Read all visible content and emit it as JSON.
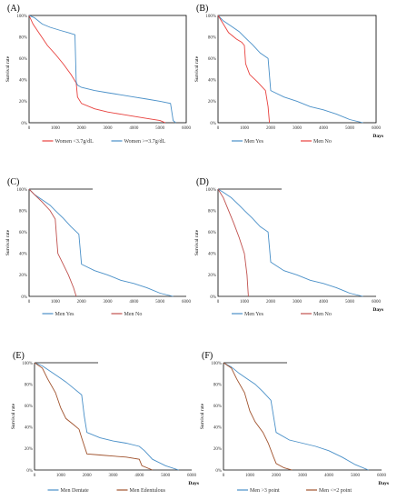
{
  "chart_data": [
    {
      "panel": "(A)",
      "type": "line",
      "title": "",
      "xlabel": "",
      "ylabel": "Survival rate",
      "xlim": [
        0,
        6000
      ],
      "ylim": [
        0,
        1
      ],
      "xticks": [
        "0",
        "1000",
        "2000",
        "3000",
        "4000",
        "5000",
        "6000"
      ],
      "yticks": [
        "0%",
        "20%",
        "40%",
        "60%",
        "80%",
        "100%"
      ],
      "frame": "full",
      "legend_position": "bottom",
      "series": [
        {
          "name": "Women <3.7g/dL",
          "color": "#e8413e",
          "x": [
            0,
            150,
            400,
            700,
            1000,
            1300,
            1600,
            1800,
            1850,
            2000,
            2500,
            3000,
            3500,
            4000,
            4500,
            5000,
            5200
          ],
          "y": [
            1.0,
            0.92,
            0.83,
            0.72,
            0.64,
            0.55,
            0.45,
            0.37,
            0.24,
            0.18,
            0.13,
            0.1,
            0.08,
            0.06,
            0.04,
            0.02,
            0.0
          ]
        },
        {
          "name": "Women >=3.7g/dL",
          "color": "#4a90c8",
          "x": [
            0,
            200,
            500,
            800,
            1200,
            1500,
            1750,
            1800,
            1850,
            2000,
            2500,
            3000,
            3500,
            4000,
            4500,
            5000,
            5400,
            5500,
            5600
          ],
          "y": [
            1.0,
            0.98,
            0.92,
            0.89,
            0.86,
            0.84,
            0.82,
            0.38,
            0.35,
            0.33,
            0.3,
            0.28,
            0.26,
            0.24,
            0.22,
            0.2,
            0.18,
            0.02,
            0.0
          ]
        }
      ]
    },
    {
      "panel": "(B)",
      "type": "line",
      "title": "",
      "xlabel": "Days",
      "ylabel": "Survival rate",
      "xlim": [
        0,
        6000
      ],
      "ylim": [
        0,
        1
      ],
      "xticks": [
        "0",
        "1000",
        "2000",
        "3000",
        "4000",
        "5000",
        "6000"
      ],
      "yticks": [
        "0%",
        "20%",
        "40%",
        "60%",
        "80%",
        "100%"
      ],
      "frame": "full",
      "legend_position": "bottom",
      "series": [
        {
          "name": "Men Yes",
          "color": "#4a90c8",
          "x": [
            0,
            200,
            500,
            800,
            1000,
            1300,
            1600,
            1900,
            2000,
            2500,
            3000,
            3500,
            4000,
            4500,
            5000,
            5500
          ],
          "y": [
            1.0,
            0.95,
            0.9,
            0.85,
            0.8,
            0.73,
            0.65,
            0.6,
            0.3,
            0.24,
            0.2,
            0.15,
            0.12,
            0.08,
            0.03,
            0.0
          ]
        },
        {
          "name": "Men No",
          "color": "#e8413e",
          "x": [
            0,
            200,
            400,
            700,
            900,
            1000,
            1050,
            1200,
            1500,
            1800,
            1900,
            1950
          ],
          "y": [
            1.0,
            0.92,
            0.84,
            0.78,
            0.75,
            0.72,
            0.55,
            0.45,
            0.38,
            0.3,
            0.15,
            0.0
          ]
        }
      ]
    },
    {
      "panel": "(C)",
      "type": "line",
      "title": "",
      "xlabel": "",
      "ylabel": "Survival rate",
      "xlim": [
        0,
        6000
      ],
      "ylim": [
        0,
        1
      ],
      "xticks": [
        "0",
        "1000",
        "2000",
        "3000",
        "4000",
        "5000",
        "6000"
      ],
      "yticks": [
        "0%",
        "20%",
        "40%",
        "60%",
        "80%",
        "100%"
      ],
      "frame": "open",
      "legend_position": "bottom",
      "series": [
        {
          "name": "Men Yes",
          "color": "#4a90c8",
          "x": [
            0,
            200,
            500,
            800,
            1000,
            1300,
            1600,
            1900,
            2000,
            2500,
            3000,
            3500,
            4000,
            4500,
            5000,
            5500
          ],
          "y": [
            1.0,
            0.95,
            0.9,
            0.85,
            0.8,
            0.73,
            0.65,
            0.58,
            0.3,
            0.24,
            0.2,
            0.15,
            0.12,
            0.08,
            0.03,
            0.0
          ]
        },
        {
          "name": "Men No",
          "color": "#c0504d",
          "x": [
            0,
            200,
            500,
            800,
            1000,
            1050,
            1100,
            1300,
            1500,
            1700,
            1800
          ],
          "y": [
            1.0,
            0.95,
            0.88,
            0.8,
            0.72,
            0.55,
            0.4,
            0.3,
            0.2,
            0.08,
            0.0
          ]
        }
      ]
    },
    {
      "panel": "(D)",
      "type": "line",
      "title": "",
      "xlabel": "Days",
      "ylabel": "Survival rate",
      "xlim": [
        0,
        6000
      ],
      "ylim": [
        0,
        1
      ],
      "xticks": [
        "0",
        "1000",
        "2000",
        "3000",
        "4000",
        "5000",
        "6000"
      ],
      "yticks": [
        "0%",
        "20%",
        "40%",
        "60%",
        "80%",
        "100%"
      ],
      "frame": "open",
      "legend_position": "bottom",
      "series": [
        {
          "name": "Men Yes",
          "color": "#4a90c8",
          "x": [
            0,
            200,
            500,
            800,
            1000,
            1300,
            1600,
            1900,
            2000,
            2500,
            3000,
            3500,
            4000,
            4500,
            5000,
            5500
          ],
          "y": [
            1.0,
            0.97,
            0.92,
            0.85,
            0.8,
            0.73,
            0.65,
            0.6,
            0.32,
            0.24,
            0.2,
            0.15,
            0.12,
            0.08,
            0.03,
            0.0
          ]
        },
        {
          "name": "Men No",
          "color": "#c0504d",
          "x": [
            0,
            200,
            400,
            600,
            800,
            1000,
            1100,
            1150
          ],
          "y": [
            1.0,
            0.92,
            0.8,
            0.68,
            0.55,
            0.4,
            0.2,
            0.0
          ]
        }
      ]
    },
    {
      "panel": "(E)",
      "type": "line",
      "title": "",
      "xlabel": "Days",
      "ylabel": "Survival rate",
      "xlim": [
        0,
        6000
      ],
      "ylim": [
        0,
        1
      ],
      "xticks": [
        "0",
        "1000",
        "2000",
        "3000",
        "4000",
        "5000",
        "6000"
      ],
      "yticks": [
        "0%",
        "20%",
        "40%",
        "60%",
        "80%",
        "100%"
      ],
      "frame": "open",
      "legend_position": "bottom",
      "series": [
        {
          "name": "Men Dentate",
          "color": "#4a90c8",
          "x": [
            0,
            300,
            600,
            900,
            1200,
            1500,
            1800,
            1900,
            2000,
            2500,
            3000,
            3500,
            4000,
            4200,
            4500,
            5000,
            5500
          ],
          "y": [
            1.0,
            0.97,
            0.92,
            0.87,
            0.82,
            0.76,
            0.7,
            0.5,
            0.35,
            0.3,
            0.27,
            0.25,
            0.22,
            0.18,
            0.1,
            0.04,
            0.0
          ]
        },
        {
          "name": "Men Edentulous",
          "color": "#a0522d",
          "x": [
            0,
            300,
            500,
            800,
            1000,
            1200,
            1500,
            1700,
            1800,
            2000,
            2500,
            3000,
            3500,
            4000,
            4100,
            4500
          ],
          "y": [
            1.0,
            0.95,
            0.85,
            0.72,
            0.58,
            0.48,
            0.42,
            0.38,
            0.3,
            0.15,
            0.14,
            0.13,
            0.12,
            0.1,
            0.04,
            0.0
          ]
        }
      ]
    },
    {
      "panel": "(F)",
      "type": "line",
      "title": "",
      "xlabel": "Days",
      "ylabel": "Survival rate",
      "xlim": [
        0,
        6000
      ],
      "ylim": [
        0,
        1
      ],
      "xticks": [
        "0",
        "1000",
        "2000",
        "3000",
        "4000",
        "5000",
        "6000"
      ],
      "yticks": [
        "0%",
        "20%",
        "40%",
        "60%",
        "80%",
        "100%"
      ],
      "frame": "open",
      "legend_position": "bottom",
      "series": [
        {
          "name": "Men >3 point",
          "color": "#4a90c8",
          "x": [
            0,
            300,
            600,
            900,
            1200,
            1500,
            1800,
            2000,
            2500,
            3000,
            3500,
            4000,
            4500,
            5000,
            5500
          ],
          "y": [
            1.0,
            0.96,
            0.9,
            0.85,
            0.8,
            0.73,
            0.65,
            0.35,
            0.28,
            0.25,
            0.22,
            0.18,
            0.12,
            0.05,
            0.0
          ]
        },
        {
          "name": "Men <=2 point",
          "color": "#a0522d",
          "x": [
            0,
            300,
            500,
            800,
            1000,
            1200,
            1500,
            1700,
            1900,
            2000,
            2300,
            2600
          ],
          "y": [
            1.0,
            0.95,
            0.85,
            0.72,
            0.55,
            0.45,
            0.35,
            0.25,
            0.12,
            0.06,
            0.02,
            0.0
          ]
        }
      ]
    }
  ]
}
